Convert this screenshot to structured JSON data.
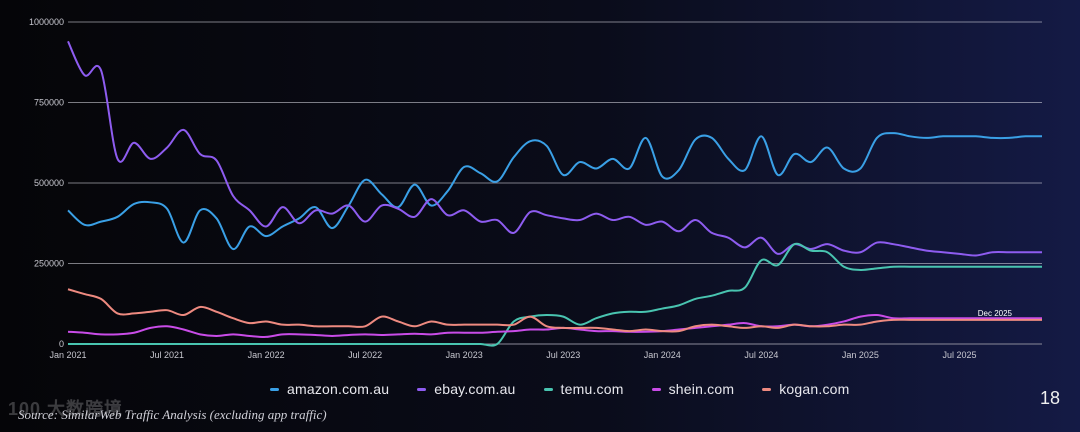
{
  "chart_data": {
    "type": "line",
    "x": [
      "2021-01",
      "2021-02",
      "2021-03",
      "2021-04",
      "2021-05",
      "2021-06",
      "2021-07",
      "2021-08",
      "2021-09",
      "2021-10",
      "2021-11",
      "2021-12",
      "2022-01",
      "2022-02",
      "2022-03",
      "2022-04",
      "2022-05",
      "2022-06",
      "2022-07",
      "2022-08",
      "2022-09",
      "2022-10",
      "2022-11",
      "2022-12",
      "2023-01",
      "2023-02",
      "2023-03",
      "2023-04",
      "2023-05",
      "2023-06",
      "2023-07",
      "2023-08",
      "2023-09",
      "2023-10",
      "2023-11",
      "2023-12",
      "2024-01",
      "2024-02",
      "2024-03",
      "2024-04",
      "2024-05",
      "2024-06",
      "2024-07",
      "2024-08",
      "2024-09",
      "2024-10",
      "2024-11",
      "2024-12",
      "2025-01",
      "2025-02",
      "2025-03",
      "2025-04",
      "2025-05",
      "2025-06",
      "2025-07",
      "2025-08",
      "2025-09",
      "2025-10",
      "2025-11",
      "2025-12"
    ],
    "x_ticks": [
      "Jan 2021",
      "Jul 2021",
      "Jan 2022",
      "Jul 2022",
      "Jan 2023",
      "Jul 2023",
      "Jan 2024",
      "Jul 2024",
      "Jan 2025",
      "Jul 2025"
    ],
    "x_tick_index": [
      0,
      6,
      12,
      18,
      24,
      30,
      36,
      42,
      48,
      54
    ],
    "y_ticks": [
      "0",
      "250000",
      "500000",
      "750000",
      "1000000"
    ],
    "ylim": [
      0,
      1000000
    ],
    "grid": true,
    "legend_position": "bottom",
    "series": [
      {
        "name": "amazon.com.au",
        "color": "#3aa0e6",
        "values": [
          415000,
          370000,
          380000,
          395000,
          435000,
          440000,
          420000,
          315000,
          415000,
          390000,
          295000,
          365000,
          335000,
          365000,
          390000,
          425000,
          360000,
          430000,
          510000,
          465000,
          425000,
          495000,
          430000,
          475000,
          550000,
          530000,
          505000,
          580000,
          630000,
          615000,
          525000,
          565000,
          545000,
          575000,
          545000,
          640000,
          520000,
          540000,
          635000,
          640000,
          575000,
          540000,
          645000,
          525000,
          590000,
          565000,
          610000,
          545000,
          545000,
          640000,
          655000,
          645000,
          640000,
          645000,
          645000,
          645000,
          640000,
          640000,
          645000,
          645000
        ]
      },
      {
        "name": "ebay.com.au",
        "color": "#8e5cf0",
        "values": [
          940000,
          835000,
          850000,
          575000,
          625000,
          575000,
          610000,
          665000,
          590000,
          570000,
          460000,
          415000,
          365000,
          425000,
          375000,
          415000,
          405000,
          430000,
          380000,
          430000,
          420000,
          395000,
          450000,
          400000,
          415000,
          380000,
          385000,
          345000,
          410000,
          400000,
          390000,
          385000,
          405000,
          385000,
          395000,
          370000,
          380000,
          350000,
          385000,
          345000,
          330000,
          300000,
          330000,
          280000,
          310000,
          295000,
          310000,
          290000,
          285000,
          315000,
          310000,
          300000,
          290000,
          285000,
          280000,
          275000,
          285000,
          285000,
          285000,
          285000
        ]
      },
      {
        "name": "temu.com",
        "color": "#49c4b0",
        "values": [
          0,
          0,
          0,
          0,
          0,
          0,
          0,
          0,
          0,
          0,
          0,
          0,
          0,
          0,
          0,
          0,
          0,
          0,
          0,
          0,
          0,
          0,
          0,
          0,
          0,
          0,
          0,
          70000,
          85000,
          90000,
          85000,
          60000,
          80000,
          95000,
          100000,
          100000,
          110000,
          120000,
          140000,
          150000,
          165000,
          175000,
          260000,
          245000,
          310000,
          290000,
          285000,
          240000,
          230000,
          235000,
          240000,
          240000,
          240000,
          240000,
          240000,
          240000,
          240000,
          240000,
          240000,
          240000
        ]
      },
      {
        "name": "shein.com",
        "color": "#c94ce8",
        "values": [
          38000,
          35000,
          30000,
          30000,
          35000,
          50000,
          55000,
          45000,
          30000,
          25000,
          30000,
          25000,
          22000,
          30000,
          30000,
          28000,
          25000,
          28000,
          30000,
          28000,
          30000,
          32000,
          30000,
          35000,
          35000,
          35000,
          38000,
          40000,
          45000,
          45000,
          50000,
          45000,
          40000,
          40000,
          38000,
          38000,
          40000,
          45000,
          50000,
          55000,
          60000,
          65000,
          55000,
          55000,
          60000,
          55000,
          60000,
          70000,
          85000,
          90000,
          80000,
          80000,
          80000,
          80000,
          80000,
          80000,
          80000,
          80000,
          80000,
          80000
        ]
      },
      {
        "name": "kogan.com",
        "color": "#ee8a80",
        "values": [
          170000,
          155000,
          140000,
          95000,
          95000,
          100000,
          105000,
          90000,
          115000,
          100000,
          80000,
          65000,
          70000,
          60000,
          60000,
          55000,
          55000,
          55000,
          55000,
          85000,
          70000,
          55000,
          70000,
          60000,
          60000,
          60000,
          60000,
          60000,
          85000,
          55000,
          50000,
          50000,
          50000,
          45000,
          40000,
          45000,
          40000,
          40000,
          55000,
          60000,
          55000,
          50000,
          55000,
          50000,
          60000,
          55000,
          55000,
          60000,
          60000,
          70000,
          75000,
          75000,
          75000,
          75000,
          75000,
          75000,
          75000,
          75000,
          75000,
          75000
        ]
      }
    ],
    "annotations": [
      {
        "text": "Dec 2025"
      }
    ]
  },
  "source": "Source: SimilarWeb Traffic Analysis (excluding app traffic)",
  "page_number": "18",
  "watermark": "100 大数跨境"
}
